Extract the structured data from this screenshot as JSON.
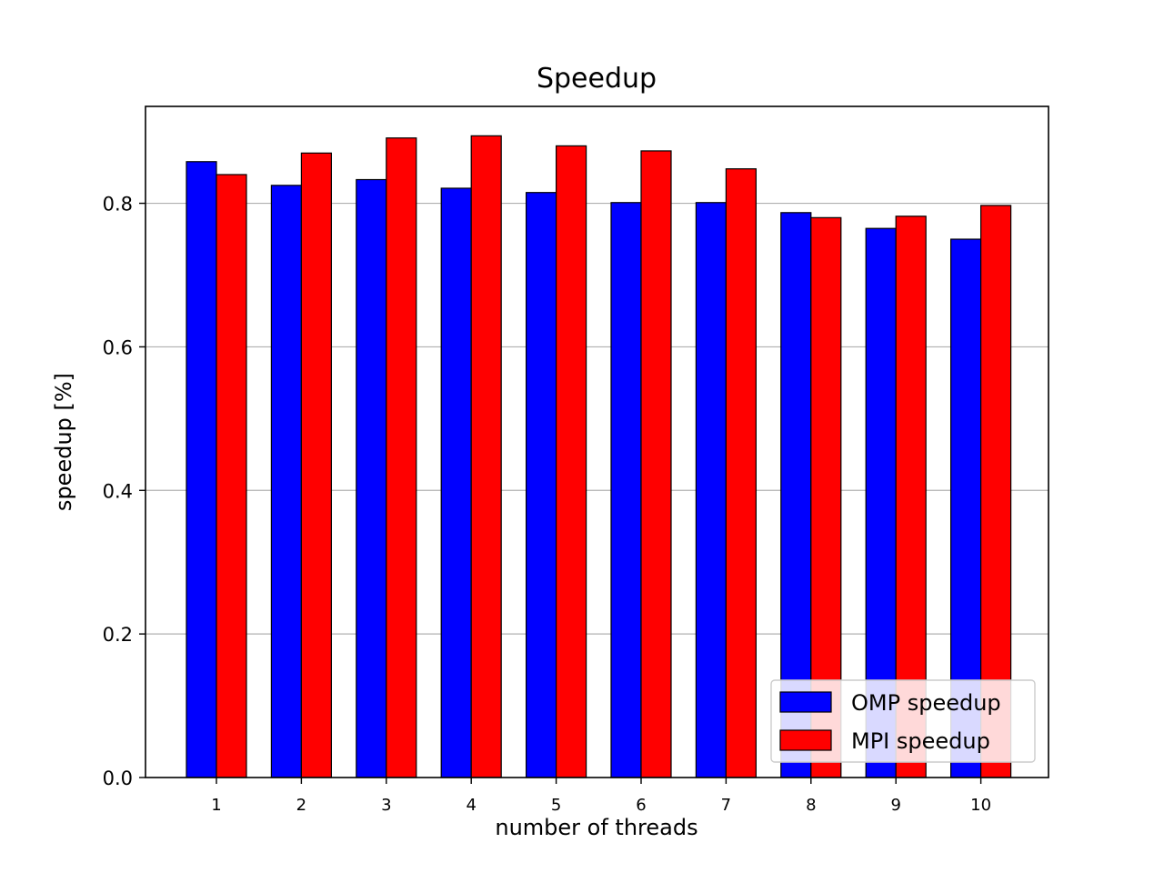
{
  "chart_data": {
    "type": "bar",
    "title": "Speedup",
    "xlabel": "number of threads",
    "ylabel": "speedup [%]",
    "categories": [
      "1",
      "2",
      "3",
      "4",
      "5",
      "6",
      "7",
      "8",
      "9",
      "10"
    ],
    "series": [
      {
        "name": "OMP speedup",
        "color": "#0000ff",
        "values": [
          0.858,
          0.825,
          0.833,
          0.821,
          0.815,
          0.801,
          0.801,
          0.787,
          0.765,
          0.75
        ]
      },
      {
        "name": "MPI speedup",
        "color": "#ff0000",
        "values": [
          0.84,
          0.87,
          0.891,
          0.894,
          0.88,
          0.873,
          0.848,
          0.78,
          0.782,
          0.797
        ]
      }
    ],
    "ylim": [
      0,
      0.935
    ],
    "yticks": [
      "0.0",
      "0.2",
      "0.4",
      "0.6",
      "0.8"
    ],
    "grid": "y",
    "legend_position": "lower-right"
  }
}
